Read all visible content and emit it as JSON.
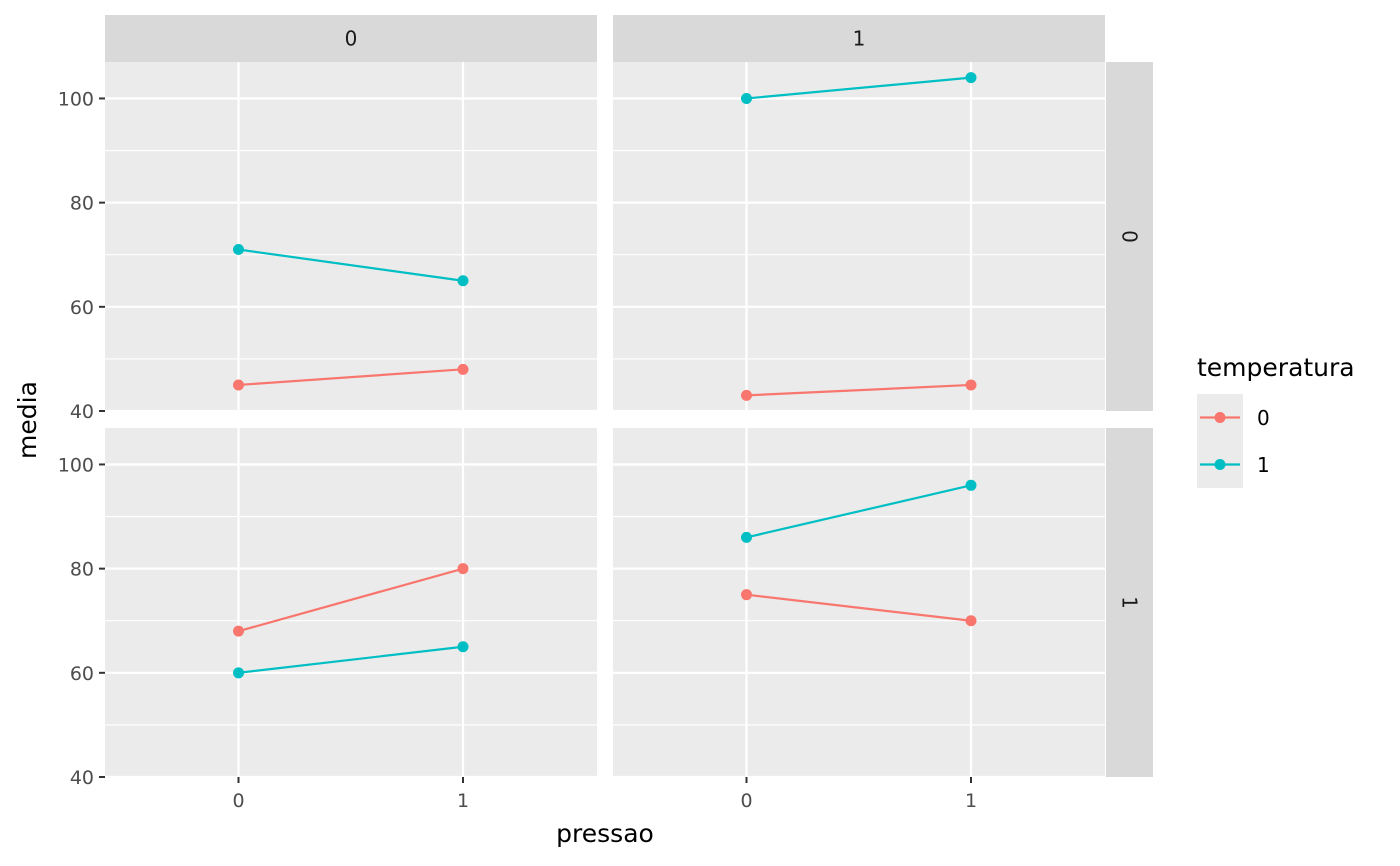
{
  "chart_data": {
    "type": "line",
    "xlabel": "pressao",
    "ylabel": "media",
    "x_categories": [
      "0",
      "1"
    ],
    "ylim": [
      40,
      107
    ],
    "y_ticks": [
      40,
      60,
      80,
      100
    ],
    "grid": true,
    "facet_cols": [
      "0",
      "1"
    ],
    "facet_rows": [
      "0",
      "1"
    ],
    "legend": {
      "title": "temperatura",
      "position": "right",
      "entries": [
        {
          "label": "0",
          "color": "#F8766D"
        },
        {
          "label": "1",
          "color": "#00BFC4"
        }
      ]
    },
    "panels": [
      {
        "row": 0,
        "col": 0,
        "series": [
          {
            "name": "0",
            "color": "#F8766D",
            "values": [
              45,
              48
            ]
          },
          {
            "name": "1",
            "color": "#00BFC4",
            "values": [
              71,
              65
            ]
          }
        ]
      },
      {
        "row": 0,
        "col": 1,
        "series": [
          {
            "name": "0",
            "color": "#F8766D",
            "values": [
              43,
              45
            ]
          },
          {
            "name": "1",
            "color": "#00BFC4",
            "values": [
              100,
              104
            ]
          }
        ]
      },
      {
        "row": 1,
        "col": 0,
        "series": [
          {
            "name": "0",
            "color": "#F8766D",
            "values": [
              68,
              80
            ]
          },
          {
            "name": "1",
            "color": "#00BFC4",
            "values": [
              60,
              65
            ]
          }
        ]
      },
      {
        "row": 1,
        "col": 1,
        "series": [
          {
            "name": "0",
            "color": "#F8766D",
            "values": [
              75,
              70
            ]
          },
          {
            "name": "1",
            "color": "#00BFC4",
            "values": [
              86,
              96
            ]
          }
        ]
      }
    ]
  }
}
